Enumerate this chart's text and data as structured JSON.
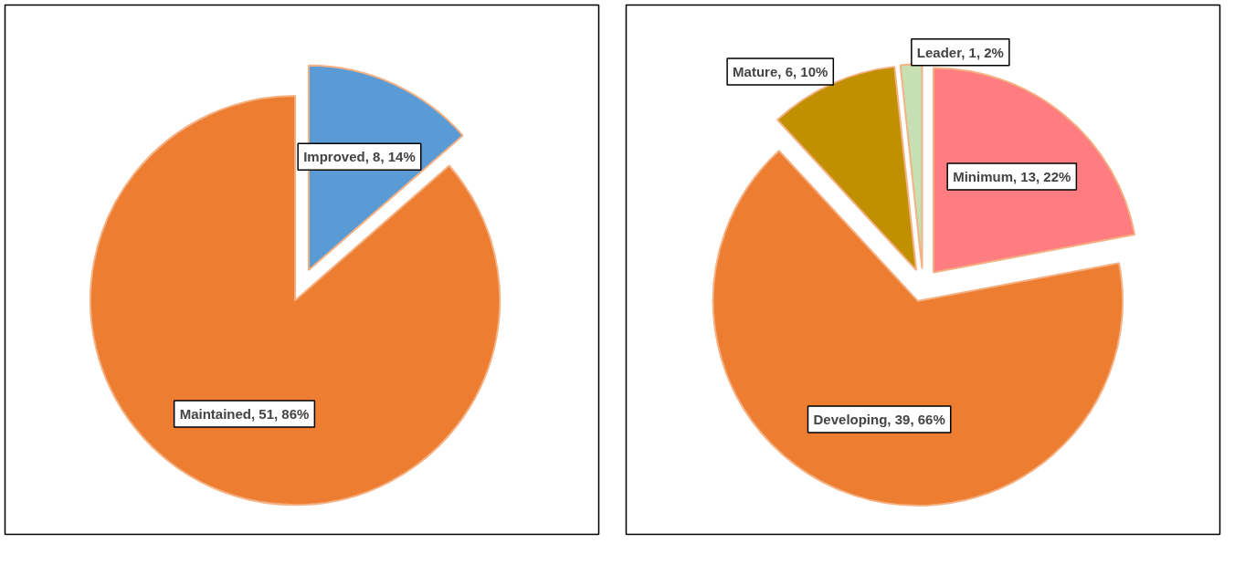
{
  "chart_data": [
    {
      "type": "pie",
      "categories": [
        "Improved",
        "Maintained"
      ],
      "values": [
        8,
        51
      ],
      "colors": [
        "#5b9bd5",
        "#ed7d31"
      ],
      "value_labels": [
        "8, 14%",
        "51, 86%"
      ]
    },
    {
      "type": "pie",
      "categories": [
        "Minimum",
        "Developing",
        "Mature",
        "Leader"
      ],
      "values": [
        13,
        39,
        6,
        1
      ],
      "colors": [
        "#ff7c80",
        "#ed7d31",
        "#c09000",
        "#c6e0b4"
      ],
      "value_labels": [
        "13, 22%",
        "39, 66%",
        "6, 10%",
        "1, 2%"
      ]
    }
  ]
}
